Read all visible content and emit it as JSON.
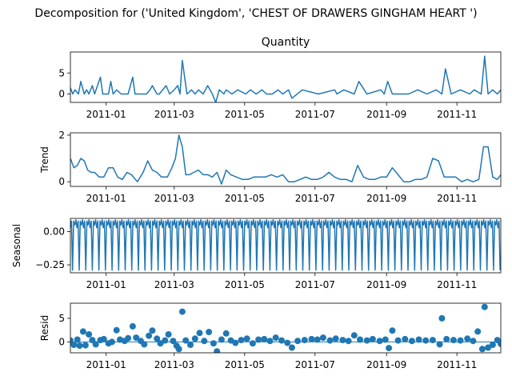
{
  "figure": {
    "title": "Decomposition for ('United Kingdom', 'CHEST OF DRAWERS GINGHAM HEART ')",
    "accent_color": "#1f77b4"
  },
  "chart_data": [
    {
      "type": "line",
      "panel": "observed",
      "title": "Quantity",
      "ylabel": "",
      "ylim": [
        -2,
        10
      ],
      "yticks": [
        0,
        5
      ],
      "xlim": [
        "2010-12-01",
        "2011-12-09"
      ],
      "xticks": [
        "2011-01",
        "2011-03",
        "2011-05",
        "2011-07",
        "2011-09",
        "2011-11"
      ],
      "series": [
        {
          "x": [
            "2010-12-01",
            "2010-12-03",
            "2010-12-05",
            "2010-12-08",
            "2010-12-10",
            "2010-12-13",
            "2010-12-15",
            "2010-12-17",
            "2010-12-20",
            "2010-12-22",
            "2010-12-27",
            "2010-12-29",
            "2011-01-03",
            "2011-01-05",
            "2011-01-07",
            "2011-01-10",
            "2011-01-14",
            "2011-01-20",
            "2011-01-24",
            "2011-01-26",
            "2011-02-01",
            "2011-02-05",
            "2011-02-08",
            "2011-02-10",
            "2011-02-14",
            "2011-02-16",
            "2011-02-22",
            "2011-02-25",
            "2011-03-01",
            "2011-03-04",
            "2011-03-06",
            "2011-03-08",
            "2011-03-12",
            "2011-03-16",
            "2011-03-19",
            "2011-03-22",
            "2011-03-26",
            "2011-03-30",
            "2011-04-03",
            "2011-04-06",
            "2011-04-09",
            "2011-04-13",
            "2011-04-15",
            "2011-04-20",
            "2011-04-25",
            "2011-05-02",
            "2011-05-06",
            "2011-05-11",
            "2011-05-16",
            "2011-05-20",
            "2011-05-25",
            "2011-05-30",
            "2011-06-03",
            "2011-06-08",
            "2011-06-11",
            "2011-06-20",
            "2011-07-04",
            "2011-07-18",
            "2011-07-20",
            "2011-07-26",
            "2011-08-04",
            "2011-08-08",
            "2011-08-15",
            "2011-08-27",
            "2011-08-30",
            "2011-09-02",
            "2011-09-06",
            "2011-09-20",
            "2011-09-28",
            "2011-10-06",
            "2011-10-14",
            "2011-10-19",
            "2011-10-22",
            "2011-10-27",
            "2011-11-04",
            "2011-11-12",
            "2011-11-16",
            "2011-11-22",
            "2011-11-25",
            "2011-11-28",
            "2011-12-02",
            "2011-12-06",
            "2011-12-09"
          ],
          "values": [
            1.5,
            0,
            1,
            0,
            3,
            0,
            1,
            0,
            2,
            0,
            4,
            0,
            0,
            3,
            0,
            1,
            0,
            0,
            4,
            0,
            0,
            0,
            1,
            2,
            0,
            0,
            2,
            0,
            1,
            2,
            0,
            8,
            0,
            1,
            0,
            1,
            0,
            2,
            0,
            -2,
            1,
            0,
            1,
            0,
            1,
            0,
            1,
            0,
            1,
            0,
            0,
            1,
            0,
            1,
            -1,
            1,
            0,
            1,
            0,
            1,
            0,
            3,
            0,
            1,
            0,
            3,
            0,
            0,
            1,
            0,
            1,
            0,
            6,
            0,
            1,
            0,
            1,
            0,
            9,
            0,
            1,
            0,
            1
          ]
        }
      ]
    },
    {
      "type": "line",
      "panel": "trend",
      "title": "",
      "ylabel": "Trend",
      "ylim": [
        -0.2,
        2.1
      ],
      "yticks": [
        0,
        2
      ],
      "xlim": [
        "2010-12-01",
        "2011-12-09"
      ],
      "xticks": [
        "2011-01",
        "2011-03",
        "2011-05",
        "2011-07",
        "2011-09",
        "2011-11"
      ],
      "series": [
        {
          "x": [
            "2010-12-01",
            "2010-12-04",
            "2010-12-07",
            "2010-12-10",
            "2010-12-13",
            "2010-12-16",
            "2010-12-19",
            "2010-12-22",
            "2010-12-26",
            "2010-12-30",
            "2011-01-03",
            "2011-01-07",
            "2011-01-11",
            "2011-01-15",
            "2011-01-19",
            "2011-01-23",
            "2011-01-28",
            "2011-02-02",
            "2011-02-06",
            "2011-02-10",
            "2011-02-14",
            "2011-02-18",
            "2011-02-23",
            "2011-02-27",
            "2011-03-02",
            "2011-03-05",
            "2011-03-08",
            "2011-03-11",
            "2011-03-14",
            "2011-03-18",
            "2011-03-22",
            "2011-03-26",
            "2011-03-30",
            "2011-04-03",
            "2011-04-07",
            "2011-04-11",
            "2011-04-15",
            "2011-04-19",
            "2011-04-24",
            "2011-04-29",
            "2011-05-04",
            "2011-05-09",
            "2011-05-14",
            "2011-05-19",
            "2011-05-24",
            "2011-05-29",
            "2011-06-03",
            "2011-06-08",
            "2011-06-13",
            "2011-06-18",
            "2011-06-23",
            "2011-06-28",
            "2011-07-03",
            "2011-07-08",
            "2011-07-13",
            "2011-07-18",
            "2011-07-23",
            "2011-07-28",
            "2011-08-02",
            "2011-08-07",
            "2011-08-12",
            "2011-08-17",
            "2011-08-22",
            "2011-08-27",
            "2011-09-01",
            "2011-09-06",
            "2011-09-11",
            "2011-09-16",
            "2011-09-21",
            "2011-09-26",
            "2011-10-01",
            "2011-10-06",
            "2011-10-11",
            "2011-10-16",
            "2011-10-21",
            "2011-10-26",
            "2011-10-31",
            "2011-11-05",
            "2011-11-10",
            "2011-11-15",
            "2011-11-20",
            "2011-11-24",
            "2011-11-28",
            "2011-12-02",
            "2011-12-06",
            "2011-12-09"
          ],
          "values": [
            1.0,
            0.6,
            0.7,
            1.0,
            0.9,
            0.5,
            0.4,
            0.4,
            0.2,
            0.2,
            0.6,
            0.6,
            0.2,
            0.1,
            0.4,
            0.3,
            0.0,
            0.4,
            0.9,
            0.5,
            0.4,
            0.2,
            0.2,
            0.6,
            1.0,
            2.0,
            1.5,
            0.3,
            0.3,
            0.4,
            0.5,
            0.3,
            0.3,
            0.2,
            0.4,
            -0.1,
            0.5,
            0.3,
            0.2,
            0.1,
            0.1,
            0.2,
            0.2,
            0.2,
            0.3,
            0.2,
            0.3,
            0.0,
            0.0,
            0.1,
            0.2,
            0.1,
            0.1,
            0.2,
            0.4,
            0.2,
            0.1,
            0.1,
            0.0,
            0.7,
            0.2,
            0.1,
            0.1,
            0.2,
            0.2,
            0.6,
            0.3,
            0.0,
            0.0,
            0.1,
            0.1,
            0.2,
            1.0,
            0.9,
            0.2,
            0.2,
            0.2,
            0.0,
            0.1,
            0.0,
            0.1,
            1.5,
            1.5,
            0.2,
            0.1,
            0.3
          ]
        }
      ]
    },
    {
      "type": "line",
      "panel": "seasonal",
      "title": "",
      "ylabel": "Seasonal",
      "ylim": [
        -0.31,
        0.1
      ],
      "yticks": [
        0.0,
        -0.25
      ],
      "ytick_labels": [
        "0.00",
        "−0.25"
      ],
      "xlim": [
        "2010-12-01",
        "2011-12-09"
      ],
      "xticks": [
        "2011-01",
        "2011-03",
        "2011-05",
        "2011-07",
        "2011-09",
        "2011-11"
      ],
      "series": [
        {
          "period_days": 5.7,
          "pattern": [
            0.03,
            0.08,
            -0.29,
            0.08,
            0.05,
            0.09
          ]
        }
      ]
    },
    {
      "type": "scatter",
      "panel": "resid",
      "title": "",
      "ylabel": "Resid",
      "ylim": [
        -2.3,
        8.2
      ],
      "yticks": [
        0,
        5
      ],
      "xlim": [
        "2010-12-01",
        "2011-12-09"
      ],
      "xticks": [
        "2011-01",
        "2011-03",
        "2011-05",
        "2011-07",
        "2011-09",
        "2011-11"
      ],
      "series": [
        {
          "x": [
            "2010-12-01",
            "2010-12-04",
            "2010-12-07",
            "2010-12-09",
            "2010-12-12",
            "2010-12-14",
            "2010-12-17",
            "2010-12-20",
            "2010-12-23",
            "2010-12-27",
            "2010-12-30",
            "2011-01-03",
            "2011-01-06",
            "2011-01-10",
            "2011-01-13",
            "2011-01-17",
            "2011-01-20",
            "2011-01-24",
            "2011-01-27",
            "2011-01-31",
            "2011-02-03",
            "2011-02-07",
            "2011-02-10",
            "2011-02-14",
            "2011-02-17",
            "2011-02-21",
            "2011-02-24",
            "2011-02-28",
            "2011-03-03",
            "2011-03-05",
            "2011-03-08",
            "2011-03-11",
            "2011-03-15",
            "2011-03-19",
            "2011-03-23",
            "2011-03-27",
            "2011-03-31",
            "2011-04-04",
            "2011-04-07",
            "2011-04-11",
            "2011-04-15",
            "2011-04-19",
            "2011-04-23",
            "2011-04-28",
            "2011-05-03",
            "2011-05-08",
            "2011-05-13",
            "2011-05-18",
            "2011-05-23",
            "2011-05-28",
            "2011-06-02",
            "2011-06-07",
            "2011-06-11",
            "2011-06-16",
            "2011-06-22",
            "2011-06-28",
            "2011-07-03",
            "2011-07-08",
            "2011-07-14",
            "2011-07-19",
            "2011-07-25",
            "2011-07-30",
            "2011-08-04",
            "2011-08-09",
            "2011-08-15",
            "2011-08-20",
            "2011-08-26",
            "2011-08-31",
            "2011-09-03",
            "2011-09-06",
            "2011-09-11",
            "2011-09-17",
            "2011-09-23",
            "2011-09-29",
            "2011-10-05",
            "2011-10-11",
            "2011-10-17",
            "2011-10-19",
            "2011-10-23",
            "2011-10-29",
            "2011-11-04",
            "2011-11-10",
            "2011-11-15",
            "2011-11-19",
            "2011-11-23",
            "2011-11-25",
            "2011-11-28",
            "2011-12-02",
            "2011-12-06",
            "2011-12-09"
          ],
          "values": [
            0.3,
            -0.6,
            0.5,
            -0.8,
            2.2,
            -0.7,
            1.6,
            0.4,
            -0.5,
            0.4,
            0.6,
            -0.3,
            0.0,
            2.5,
            0.5,
            0.2,
            0.8,
            3.3,
            0.9,
            0.2,
            -0.5,
            1.3,
            2.4,
            0.7,
            -0.3,
            0.3,
            1.6,
            0.2,
            -0.8,
            -1.5,
            6.4,
            0.3,
            -0.6,
            0.7,
            1.9,
            0.2,
            2.1,
            -0.3,
            -2.0,
            0.5,
            1.8,
            0.3,
            -0.2,
            0.4,
            0.7,
            -0.3,
            0.5,
            0.6,
            0.2,
            0.9,
            0.3,
            -0.2,
            -1.2,
            0.2,
            0.4,
            0.6,
            0.5,
            0.9,
            0.3,
            0.7,
            0.4,
            0.2,
            1.4,
            0.5,
            0.3,
            0.6,
            0.2,
            0.5,
            -1.3,
            2.4,
            0.3,
            0.6,
            0.2,
            0.5,
            0.3,
            0.4,
            -0.5,
            5.0,
            0.6,
            0.4,
            0.3,
            0.7,
            0.2,
            2.2,
            -1.5,
            7.4,
            -1.2,
            -0.6,
            0.4,
            -0.4
          ]
        }
      ]
    }
  ]
}
